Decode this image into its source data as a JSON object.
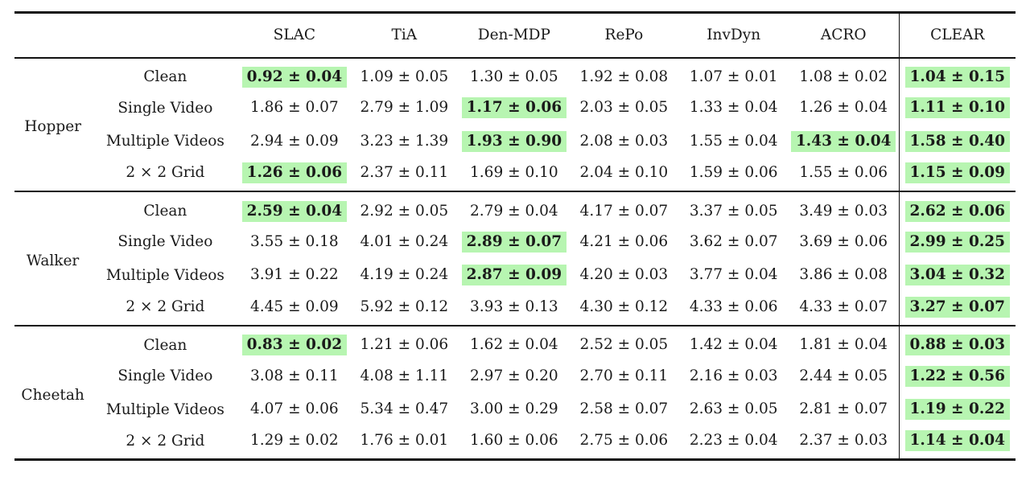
{
  "columns": [
    "SLAC",
    "TiA",
    "Den-MDP",
    "RePo",
    "InvDyn",
    "ACRO",
    "CLEAR"
  ],
  "colors": {
    "highlight": "#b7f5b1",
    "rule": "#111111"
  },
  "groups": [
    {
      "name": "Hopper",
      "rows": [
        {
          "condition": "Clean",
          "values": [
            "0.92 ± 0.04",
            "1.09 ± 0.05",
            "1.30 ± 0.05",
            "1.92 ± 0.08",
            "1.07 ± 0.01",
            "1.08 ± 0.02",
            "1.04 ± 0.15"
          ],
          "highlight": [
            0,
            6
          ]
        },
        {
          "condition": "Single Video",
          "values": [
            "1.86 ± 0.07",
            "2.79 ± 1.09",
            "1.17 ± 0.06",
            "2.03 ± 0.05",
            "1.33 ± 0.04",
            "1.26 ± 0.04",
            "1.11 ± 0.10"
          ],
          "highlight": [
            2,
            6
          ]
        },
        {
          "condition": "Multiple Videos",
          "values": [
            "2.94 ± 0.09",
            "3.23 ± 1.39",
            "1.93 ± 0.90",
            "2.08 ± 0.03",
            "1.55 ± 0.04",
            "1.43 ± 0.04",
            "1.58 ± 0.40"
          ],
          "highlight": [
            2,
            5,
            6
          ]
        },
        {
          "condition": "2 × 2 Grid",
          "values": [
            "1.26 ± 0.06",
            "2.37 ± 0.11",
            "1.69 ± 0.10",
            "2.04 ± 0.10",
            "1.59 ± 0.06",
            "1.55 ± 0.06",
            "1.15 ± 0.09"
          ],
          "highlight": [
            0,
            6
          ]
        }
      ]
    },
    {
      "name": "Walker",
      "rows": [
        {
          "condition": "Clean",
          "values": [
            "2.59 ± 0.04",
            "2.92 ± 0.05",
            "2.79 ± 0.04",
            "4.17 ± 0.07",
            "3.37 ± 0.05",
            "3.49 ± 0.03",
            "2.62 ± 0.06"
          ],
          "highlight": [
            0,
            6
          ]
        },
        {
          "condition": "Single Video",
          "values": [
            "3.55 ± 0.18",
            "4.01 ± 0.24",
            "2.89 ± 0.07",
            "4.21 ± 0.06",
            "3.62 ± 0.07",
            "3.69 ± 0.06",
            "2.99 ± 0.25"
          ],
          "highlight": [
            2,
            6
          ]
        },
        {
          "condition": "Multiple Videos",
          "values": [
            "3.91 ± 0.22",
            "4.19 ± 0.24",
            "2.87 ± 0.09",
            "4.20 ± 0.03",
            "3.77 ± 0.04",
            "3.86 ± 0.08",
            "3.04 ± 0.32"
          ],
          "highlight": [
            2,
            6
          ]
        },
        {
          "condition": "2 × 2 Grid",
          "values": [
            "4.45 ± 0.09",
            "5.92 ± 0.12",
            "3.93 ± 0.13",
            "4.30 ± 0.12",
            "4.33 ± 0.06",
            "4.33 ± 0.07",
            "3.27 ± 0.07"
          ],
          "highlight": [
            6
          ]
        }
      ]
    },
    {
      "name": "Cheetah",
      "rows": [
        {
          "condition": "Clean",
          "values": [
            "0.83 ± 0.02",
            "1.21 ± 0.06",
            "1.62 ± 0.04",
            "2.52 ± 0.05",
            "1.42 ± 0.04",
            "1.81 ± 0.04",
            "0.88 ± 0.03"
          ],
          "highlight": [
            0,
            6
          ]
        },
        {
          "condition": "Single Video",
          "values": [
            "3.08 ± 0.11",
            "4.08 ± 1.11",
            "2.97 ± 0.20",
            "2.70 ± 0.11",
            "2.16 ± 0.03",
            "2.44 ± 0.05",
            "1.22 ± 0.56"
          ],
          "highlight": [
            6
          ]
        },
        {
          "condition": "Multiple Videos",
          "values": [
            "4.07 ± 0.06",
            "5.34 ± 0.47",
            "3.00 ± 0.29",
            "2.58 ± 0.07",
            "2.63 ± 0.05",
            "2.81 ± 0.07",
            "1.19 ± 0.22"
          ],
          "highlight": [
            6
          ]
        },
        {
          "condition": "2 × 2 Grid",
          "values": [
            "1.29 ± 0.02",
            "1.76 ± 0.01",
            "1.60 ± 0.06",
            "2.75 ± 0.06",
            "2.23 ± 0.04",
            "2.37 ± 0.03",
            "1.14 ± 0.04"
          ],
          "highlight": [
            6
          ]
        }
      ]
    }
  ]
}
